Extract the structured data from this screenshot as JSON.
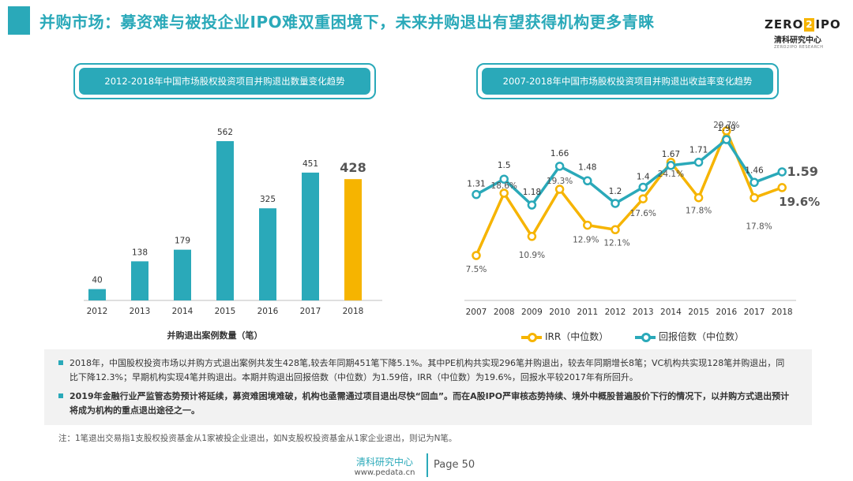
{
  "page": {
    "title": "并购市场：募资难与被投企业IPO难双重困境下，未来并购退出有望获得机构更多青睐",
    "logo": {
      "main_left": "ZERO",
      "main_box": "2",
      "main_right": "IPO",
      "sub": "清科研究中心",
      "tiny": "ZERO2IPO RESEARCH"
    }
  },
  "colors": {
    "teal": "#2aa9b9",
    "yellow": "#f6b400",
    "gray_text": "#333333"
  },
  "chart_data": [
    {
      "type": "bar",
      "title": "2012-2018年中国市场股权投资项目并购退出数量变化趋势",
      "xlabel": "并购退出案例数量（笔）",
      "categories": [
        "2012",
        "2013",
        "2014",
        "2015",
        "2016",
        "2017",
        "2018"
      ],
      "values": [
        40,
        138,
        179,
        562,
        325,
        451,
        428
      ],
      "value_labels": [
        "40",
        "138",
        "179",
        "562",
        "325",
        "451",
        "428"
      ],
      "bar_colors": [
        "#2aa9b9",
        "#2aa9b9",
        "#2aa9b9",
        "#2aa9b9",
        "#2aa9b9",
        "#2aa9b9",
        "#f6b400"
      ],
      "highlight_index": 6,
      "ylim": [
        0,
        600
      ],
      "grid": false
    },
    {
      "type": "line",
      "title": "2007-2018年中国市场股权投资项目并购退出收益率变化趋势",
      "categories": [
        "2007",
        "2008",
        "2009",
        "2010",
        "2011",
        "2012",
        "2013",
        "2014",
        "2015",
        "2016",
        "2017",
        "2018"
      ],
      "series": [
        {
          "name": "IRR（中位数）",
          "color": "#f6b400",
          "values": [
            7.5,
            18.6,
            10.9,
            19.3,
            12.9,
            12.1,
            17.6,
            24.1,
            17.8,
            29.7,
            17.8,
            19.6
          ],
          "labels": [
            "7.5%",
            "18.6%",
            "10.9%",
            "19.3%",
            "12.9%",
            "12.1%",
            "17.6%",
            "24.1%",
            "17.8%",
            "29.7%",
            "17.8%",
            "19.6%"
          ]
        },
        {
          "name": "回报倍数（中位数）",
          "color": "#2aa9b9",
          "values": [
            1.31,
            1.5,
            1.18,
            1.66,
            1.48,
            1.2,
            1.4,
            1.67,
            1.71,
            1.99,
            1.46,
            1.59
          ],
          "labels": [
            "1.31",
            "1.5",
            "1.18",
            "1.66",
            "1.48",
            "1.2",
            "1.4",
            "1.67",
            "1.71",
            "1.99",
            "1.46",
            "1.59"
          ]
        }
      ],
      "legend": "bottom",
      "grid": false
    }
  ],
  "notes": [
    "2018年，中国股权投资市场以并购方式退出案例共发生428笔,较去年同期451笔下降5.1%。其中PE机构共实现296笔并购退出，较去年同期增长8笔；VC机构共实现128笔并购退出，同比下降12.3%；早期机构实现4笔并购退出。本期并购退出回报倍数（中位数）为1.59倍，IRR（中位数）为19.6%，回报水平较2017年有所回升。",
    "2019年金融行业严监管态势预计将延续，募资难困境难破，机构也亟需通过项目退出尽快“回血”。而在A股IPO严审核态势持续、境外中概股普遍股价下行的情况下，以并购方式退出预计将成为机构的重点退出途径之一。"
  ],
  "footnote": "注：1笔退出交易指1支股权投资基金从1家被投企业退出，如N支股权投资基金从1家企业退出，则记为N笔。",
  "footer": {
    "org": "清科研究中心",
    "url": "www.pedata.cn",
    "page": "Page 50"
  }
}
